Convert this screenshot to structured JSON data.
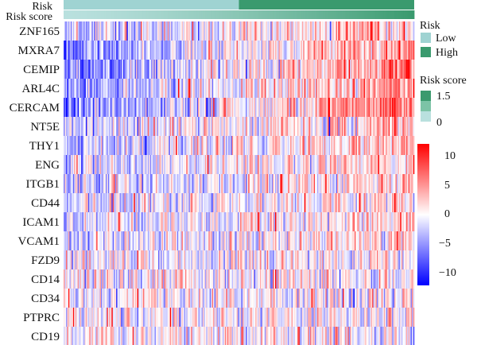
{
  "chart_data": {
    "type": "heatmap",
    "title": "",
    "annotation_tracks": [
      {
        "name": "Risk",
        "values_by_fraction": [
          {
            "group": "Low",
            "until": 0.5
          },
          {
            "group": "High",
            "until": 1.0
          }
        ]
      },
      {
        "name": "Risk score",
        "range": [
          0,
          1.5
        ]
      }
    ],
    "genes_top": [
      "ZNF165",
      "MXRA7",
      "CEMIP",
      "ARL4C",
      "CERCAM"
    ],
    "genes_bottom": [
      "NT5E",
      "THY1",
      "ENG",
      "ITGB1",
      "CD44",
      "ICAM1",
      "VCAM1",
      "FZD9",
      "CD14",
      "CD34",
      "PTPRC",
      "CD19"
    ],
    "samples_ordered_by": "Risk score",
    "legend": {
      "risk_title": "Risk",
      "risk_groups": [
        {
          "label": "Low",
          "color": "#9fd3d2"
        },
        {
          "label": "High",
          "color": "#3a9a6e"
        }
      ],
      "score_title": "Risk score",
      "score_ticks": [
        "1.5",
        "0"
      ],
      "score_colors": [
        "#3a9a6e",
        "#7cc3a6",
        "#b9e0de"
      ],
      "expression_ticks": [
        "10",
        "5",
        "0",
        "−5",
        "−10"
      ],
      "expression_range": [
        -12,
        12
      ],
      "expression_colors": {
        "low": "#0000ff",
        "mid": "#ffffff",
        "high": "#ff0000"
      }
    },
    "trend_by_gene": {
      "ZNF165": 0.55,
      "MXRA7": 1.0,
      "CEMIP": 1.0,
      "ARL4C": 0.9,
      "CERCAM": 1.1,
      "NT5E": 0.45,
      "THY1": 0.5,
      "ENG": 0.35,
      "ITGB1": 0.45,
      "CD44": 0.35,
      "ICAM1": 0.25,
      "VCAM1": 0.3,
      "FZD9": 0.05,
      "CD14": 0.1,
      "CD34": 0.1,
      "PTPRC": 0.05,
      "CD19": 0.0
    }
  }
}
